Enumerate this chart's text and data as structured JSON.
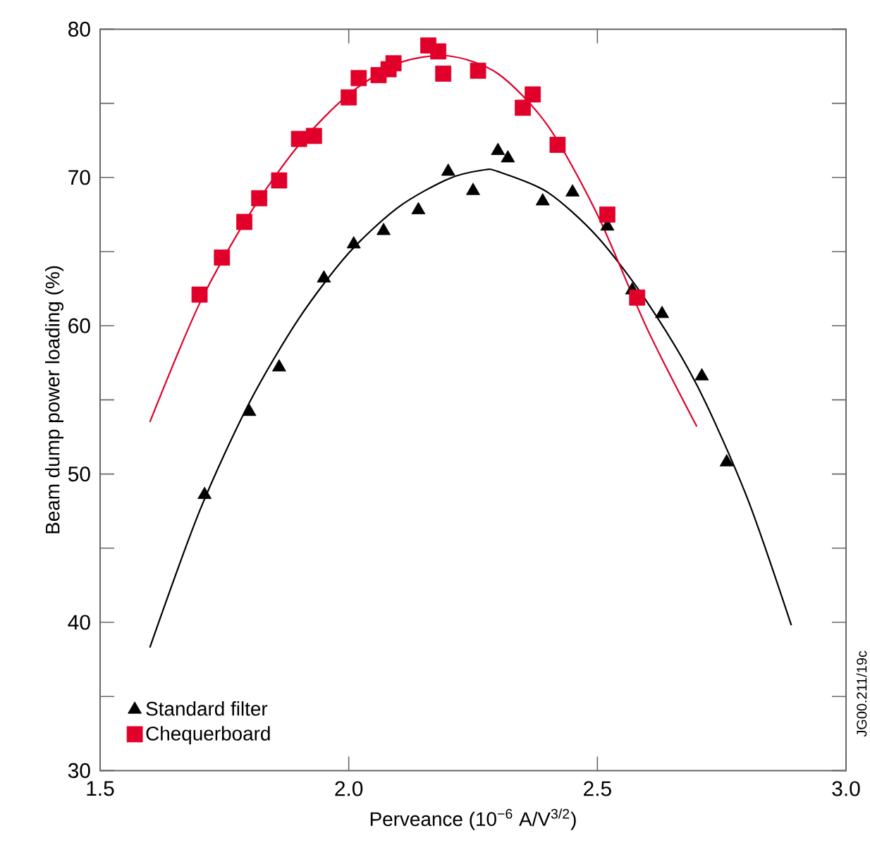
{
  "chart_data": {
    "type": "scatter",
    "xlabel": "Perveance (10$^{−6}$ A/V$^{3/2}$)",
    "ylabel": "Beam dump power loading (%)",
    "xlim": [
      1.5,
      3.0
    ],
    "xticks": [
      {
        "value": 1.5,
        "label": "1.5"
      },
      {
        "value": 2.0,
        "label": "2.0"
      },
      {
        "value": 2.5,
        "label": "2.5"
      },
      {
        "value": 3.0,
        "label": "3.0"
      }
    ],
    "ylim": [
      30,
      80
    ],
    "yticks": [
      30,
      {
        "value": 35,
        "label": null
      },
      40,
      {
        "value": 45,
        "label": null
      },
      50,
      {
        "value": 55,
        "label": null
      },
      60,
      {
        "value": 65,
        "label": null
      },
      70,
      {
        "value": 75,
        "label": null
      },
      80
    ],
    "legend": "bottom left",
    "grid": false,
    "annotations": [
      "JG00.211/19c"
    ],
    "series": [
      {
        "type": "line",
        "color": "#000000",
        "marker": "none",
        "line_style": "solid",
        "x": [
          1.6,
          1.7,
          1.8,
          1.9,
          2.0,
          2.1,
          2.2,
          2.27,
          2.3,
          2.4,
          2.5,
          2.6,
          2.7,
          2.8,
          2.89
        ],
        "values": [
          38.3,
          47.5,
          54.8,
          60.5,
          64.9,
          68.0,
          69.9,
          70.5,
          70.4,
          69.0,
          66.0,
          61.6,
          56.0,
          48.5,
          39.8
        ]
      },
      {
        "type": "line",
        "color": "#e0002a",
        "marker": "none",
        "line_style": "solid",
        "x": [
          1.6,
          1.7,
          1.8,
          1.9,
          2.0,
          2.1,
          2.2,
          2.3,
          2.4,
          2.5,
          2.6,
          2.7
        ],
        "values": [
          53.5,
          61.5,
          67.5,
          72.2,
          75.6,
          77.7,
          78.2,
          77.0,
          73.5,
          67.5,
          59.8,
          53.2
        ]
      },
      {
        "name": "Standard filter",
        "color": "#000000",
        "marker": "triangle",
        "x": [
          1.71,
          1.8,
          1.86,
          1.95,
          2.01,
          2.07,
          2.14,
          2.2,
          2.25,
          2.3,
          2.32,
          2.39,
          2.45,
          2.52,
          2.57,
          2.63,
          2.71,
          2.76
        ],
        "values": [
          48.6,
          54.2,
          57.2,
          63.2,
          65.5,
          66.4,
          67.8,
          70.4,
          69.1,
          71.8,
          71.3,
          68.4,
          69.0,
          66.7,
          62.4,
          60.8,
          56.6,
          50.8
        ]
      },
      {
        "name": "Chequerboard",
        "color": "#e0002a",
        "marker": "square",
        "x": [
          1.7,
          1.745,
          1.79,
          1.82,
          1.86,
          1.9,
          1.93,
          2.0,
          2.02,
          2.06,
          2.08,
          2.09,
          2.16,
          2.18,
          2.19,
          2.26,
          2.35,
          2.37,
          2.42,
          2.52,
          2.58
        ],
        "values": [
          62.1,
          64.6,
          67.0,
          68.6,
          69.8,
          72.6,
          72.8,
          75.4,
          76.7,
          76.9,
          77.3,
          77.7,
          78.9,
          78.5,
          77.0,
          77.2,
          74.7,
          75.6,
          72.2,
          67.5,
          61.9
        ]
      }
    ]
  }
}
